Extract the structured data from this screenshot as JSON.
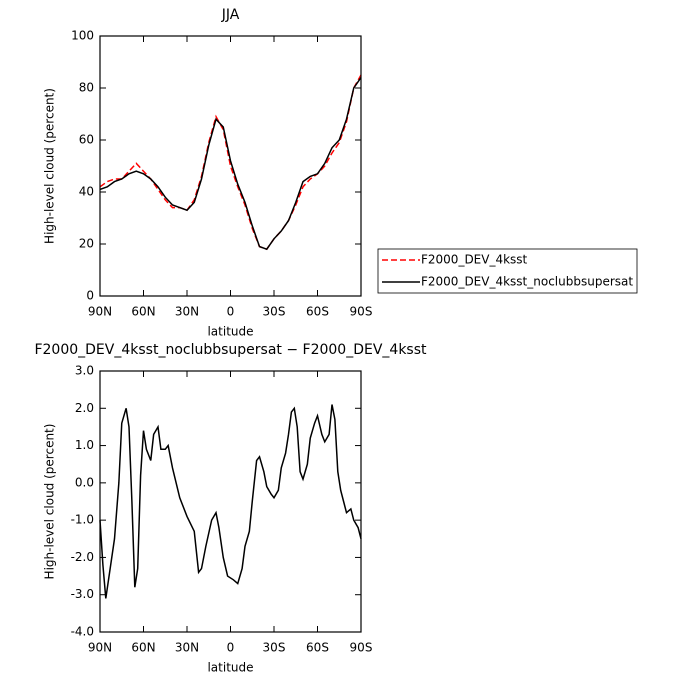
{
  "chart_data": [
    {
      "type": "line",
      "title": "JJA",
      "xlabel": "latitude",
      "ylabel": "High-level cloud (percent)",
      "xlim": [
        90,
        -90
      ],
      "xticks": [
        {
          "value": 90,
          "label": "90N"
        },
        {
          "value": 60,
          "label": "60N"
        },
        {
          "value": 30,
          "label": "30N"
        },
        0,
        {
          "value": -30,
          "label": "30S"
        },
        {
          "value": -60,
          "label": "60S"
        },
        {
          "value": -90,
          "label": "90S"
        }
      ],
      "ylim": [
        0,
        100
      ],
      "yticks": [
        0,
        20,
        40,
        60,
        80,
        100
      ],
      "legend": "right",
      "x": [
        90,
        85,
        80,
        75,
        70,
        65,
        60,
        55,
        50,
        45,
        40,
        35,
        30,
        25,
        20,
        15,
        10,
        5,
        0,
        -5,
        -10,
        -15,
        -20,
        -25,
        -30,
        -35,
        -40,
        -45,
        -50,
        -55,
        -60,
        -65,
        -70,
        -75,
        -80,
        -85,
        -90
      ],
      "series": [
        {
          "name": "F2000_DEV_4ksst",
          "color": "#ff0000",
          "line_style": "dashed",
          "values": [
            42,
            44,
            45,
            45,
            48,
            51,
            48,
            45,
            41,
            37,
            34,
            34,
            33,
            37,
            46,
            59,
            69,
            64,
            50,
            42,
            35,
            26,
            19,
            18,
            22,
            25,
            29,
            35,
            42,
            45,
            47,
            50,
            55,
            59,
            67,
            80,
            85
          ]
        },
        {
          "name": "F2000_DEV_4ksst_noclubbsupersat",
          "color": "#000000",
          "line_style": "solid",
          "values": [
            41,
            42,
            44,
            45,
            47,
            48,
            47,
            45,
            42,
            38,
            35,
            34,
            33,
            36,
            45,
            58,
            68,
            65,
            52,
            43,
            36,
            27,
            19,
            18,
            22,
            25,
            29,
            36,
            44,
            46,
            47,
            51,
            57,
            60,
            68,
            80,
            84
          ]
        }
      ]
    },
    {
      "type": "line",
      "title": "F2000_DEV_4ksst_noclubbsupersat − F2000_DEV_4ksst",
      "xlabel": "latitude",
      "ylabel": "High-level cloud (percent)",
      "xlim": [
        90,
        -90
      ],
      "xticks": [
        {
          "value": 90,
          "label": "90N"
        },
        {
          "value": 60,
          "label": "60N"
        },
        {
          "value": 30,
          "label": "30N"
        },
        0,
        {
          "value": -30,
          "label": "30S"
        },
        {
          "value": -60,
          "label": "60S"
        },
        {
          "value": -90,
          "label": "90S"
        }
      ],
      "ylim": [
        -4,
        3
      ],
      "yticks": [
        {
          "value": -4,
          "label": "-4.0"
        },
        {
          "value": -3,
          "label": "-3.0"
        },
        {
          "value": -2,
          "label": "-2.0"
        },
        {
          "value": -1,
          "label": "-1.0"
        },
        {
          "value": 0,
          "label": "0.0"
        },
        {
          "value": 1,
          "label": "1.0"
        },
        {
          "value": 2,
          "label": "2.0"
        },
        {
          "value": 3,
          "label": "3.0"
        }
      ],
      "x": [
        90,
        88,
        86,
        83,
        80,
        77,
        75,
        72,
        70,
        68,
        66,
        64,
        62,
        60,
        58,
        55,
        53,
        50,
        48,
        45,
        43,
        40,
        35,
        30,
        25,
        22,
        20,
        17,
        13,
        10,
        8,
        5,
        2,
        -2,
        -5,
        -8,
        -10,
        -13,
        -15,
        -18,
        -20,
        -23,
        -25,
        -28,
        -30,
        -33,
        -35,
        -38,
        -40,
        -42,
        -44,
        -46,
        -48,
        -50,
        -53,
        -55,
        -58,
        -60,
        -63,
        -65,
        -68,
        -70,
        -72,
        -74,
        -76,
        -78,
        -80,
        -83,
        -85,
        -88,
        -90
      ],
      "series": [
        {
          "color": "#000000",
          "line_style": "solid",
          "values": [
            -1.0,
            -2.2,
            -3.1,
            -2.3,
            -1.5,
            0.0,
            1.6,
            2.0,
            1.5,
            -0.5,
            -2.8,
            -2.3,
            0.2,
            1.4,
            0.9,
            0.6,
            1.3,
            1.5,
            0.9,
            0.9,
            1.0,
            0.4,
            -0.4,
            -0.9,
            -1.3,
            -2.4,
            -2.3,
            -1.7,
            -1.0,
            -0.8,
            -1.2,
            -2.0,
            -2.5,
            -2.6,
            -2.7,
            -2.3,
            -1.7,
            -1.3,
            -0.5,
            0.6,
            0.7,
            0.3,
            -0.1,
            -0.3,
            -0.4,
            -0.2,
            0.4,
            0.8,
            1.3,
            1.9,
            2.0,
            1.5,
            0.3,
            0.1,
            0.5,
            1.2,
            1.6,
            1.8,
            1.3,
            1.1,
            1.3,
            2.1,
            1.7,
            0.3,
            -0.2,
            -0.5,
            -0.8,
            -0.7,
            -1.0,
            -1.2,
            -1.5
          ]
        }
      ]
    }
  ]
}
